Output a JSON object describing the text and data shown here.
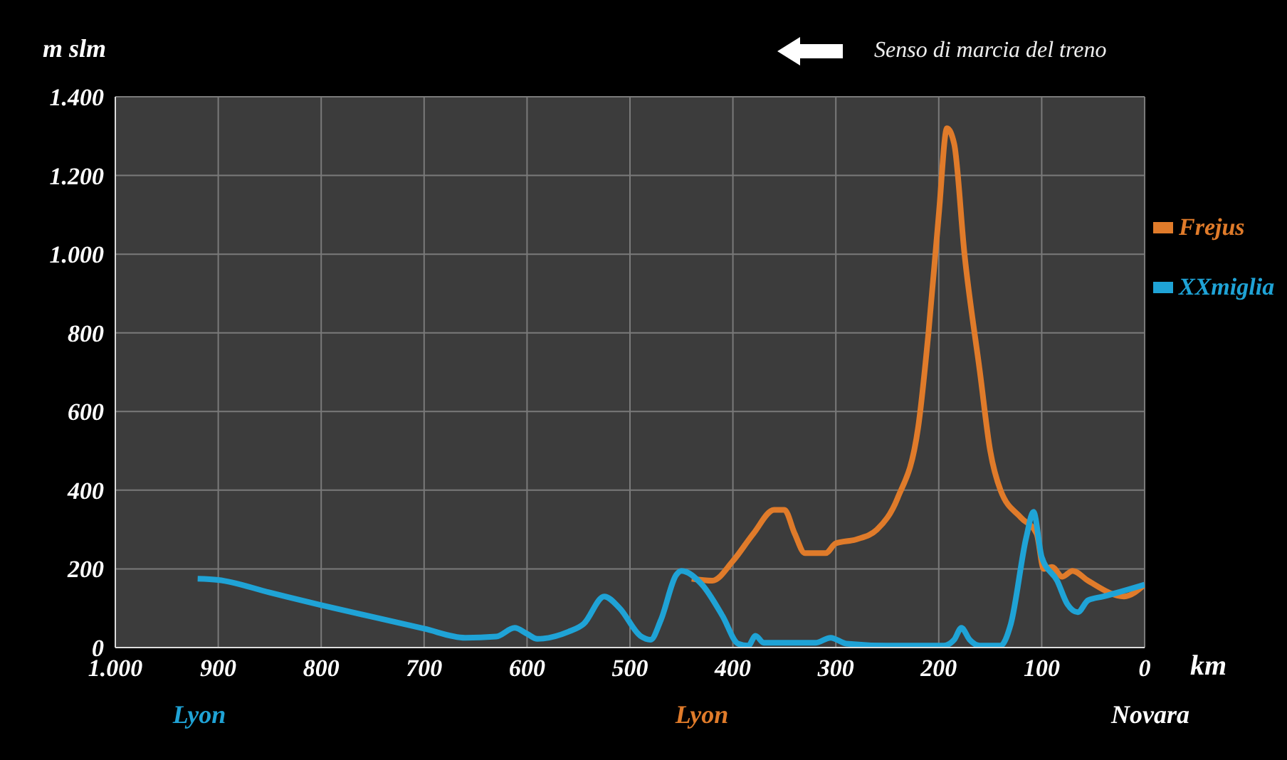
{
  "chart_data": {
    "type": "line",
    "ylabel": "m slm",
    "xlim": [
      1000,
      0
    ],
    "xticks": [
      {
        "value": 1000,
        "label": "1.000"
      },
      900,
      800,
      700,
      600,
      500,
      400,
      300,
      200,
      100,
      0
    ],
    "ylim": [
      0,
      1400
    ],
    "yticks": [
      0,
      200,
      400,
      600,
      800,
      {
        "value": 1000,
        "label": "1.000"
      },
      {
        "value": 1200,
        "label": "1.200"
      },
      {
        "value": 1400,
        "label": "1.400"
      }
    ],
    "grid": true,
    "legend": "right",
    "marker": "none",
    "line_style": "solid",
    "series": [
      {
        "name": "Frejus",
        "color": "#e07b2a",
        "x": [
          440,
          420,
          400,
          380,
          360,
          350,
          340,
          330,
          310,
          300,
          280,
          260,
          240,
          220,
          210,
          200,
          192,
          185,
          175,
          160,
          150,
          140,
          120,
          105,
          98,
          90,
          80,
          70,
          55,
          20,
          0
        ],
        "values": [
          175,
          170,
          220,
          290,
          350,
          350,
          290,
          240,
          240,
          265,
          275,
          300,
          380,
          560,
          800,
          1100,
          1320,
          1280,
          1000,
          700,
          500,
          400,
          330,
          290,
          200,
          205,
          180,
          195,
          170,
          130,
          160
        ]
      },
      {
        "name": "XXmiglia",
        "color": "#1fa3d6",
        "x": [
          920,
          900,
          850,
          800,
          750,
          700,
          660,
          630,
          612,
          600,
          590,
          560,
          545,
          525,
          510,
          490,
          480,
          470,
          455,
          450,
          430,
          410,
          395,
          385,
          378,
          370,
          320,
          305,
          290,
          250,
          195,
          185,
          178,
          170,
          160,
          140,
          130,
          115,
          108,
          100,
          85,
          75,
          65,
          55,
          40,
          0
        ],
        "values": [
          175,
          172,
          140,
          108,
          78,
          48,
          25,
          28,
          50,
          35,
          22,
          40,
          60,
          130,
          100,
          30,
          20,
          70,
          185,
          195,
          160,
          80,
          10,
          5,
          30,
          12,
          12,
          25,
          10,
          5,
          5,
          20,
          50,
          20,
          5,
          5,
          60,
          280,
          345,
          230,
          170,
          110,
          90,
          120,
          130,
          160
        ]
      }
    ],
    "annotations": [
      "Senso di marcia del treno",
      "km",
      "Lyon",
      "Lyon",
      "Novara"
    ]
  }
}
